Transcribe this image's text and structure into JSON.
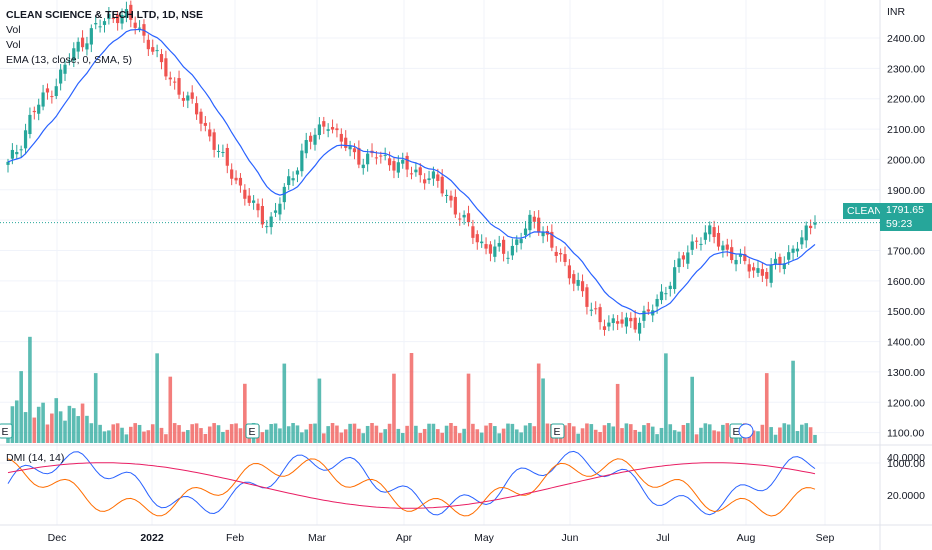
{
  "legend": {
    "title": "CLEAN SCIENCE & TECH LTD, 1D, NSE",
    "line2": "Vol",
    "line3": "Vol",
    "line4": "EMA (13, close, 0, SMA, 5)"
  },
  "dmi_label": "DMI (14, 14)",
  "price_tag": {
    "symbol": "CLEAN",
    "price": "1791.65",
    "countdown": "59:23"
  },
  "currency": "INR",
  "colors": {
    "up": "#26a69a",
    "down": "#ef5350",
    "ema": "#2962ff",
    "dmi_plus": "#2962ff",
    "dmi_minus": "#ff6d00",
    "adx": "#e91e63"
  },
  "chart_data": {
    "type": "candlestick",
    "price_axis": {
      "ticks": [
        "2400.00",
        "2300.00",
        "2200.00",
        "2100.00",
        "2000.00",
        "1900.00",
        "1800.00",
        "1700.00",
        "1600.00",
        "1500.00",
        "1400.00",
        "1300.00",
        "1200.00",
        "1100.00",
        "1000.00"
      ]
    },
    "time_axis": {
      "ticks": [
        "Dec",
        "2022",
        "Feb",
        "Mar",
        "Apr",
        "May",
        "Jun",
        "Jul",
        "Aug",
        "Sep"
      ]
    },
    "closes": [
      1980,
      2050,
      2150,
      2200,
      2250,
      2320,
      2380,
      2420,
      2450,
      2480,
      2470,
      2430,
      2380,
      2300,
      2250,
      2200,
      2150,
      2080,
      2000,
      1950,
      1880,
      1820,
      1790,
      1870,
      1950,
      2050,
      2080,
      2130,
      2060,
      2020,
      2000,
      2010,
      2000,
      1980,
      1960,
      1950,
      1930,
      1880,
      1820,
      1760,
      1720,
      1700,
      1690,
      1740,
      1790,
      1780,
      1700,
      1640,
      1600,
      1500,
      1470,
      1460,
      1460,
      1470,
      1490,
      1550,
      1620,
      1680,
      1740,
      1760,
      1720,
      1690,
      1650,
      1640,
      1620,
      1660,
      1700,
      1740,
      1791.65
    ],
    "ema_note": "EMA 13",
    "dmi_axis": {
      "ticks": [
        "40.0000",
        "20.0000"
      ]
    }
  }
}
